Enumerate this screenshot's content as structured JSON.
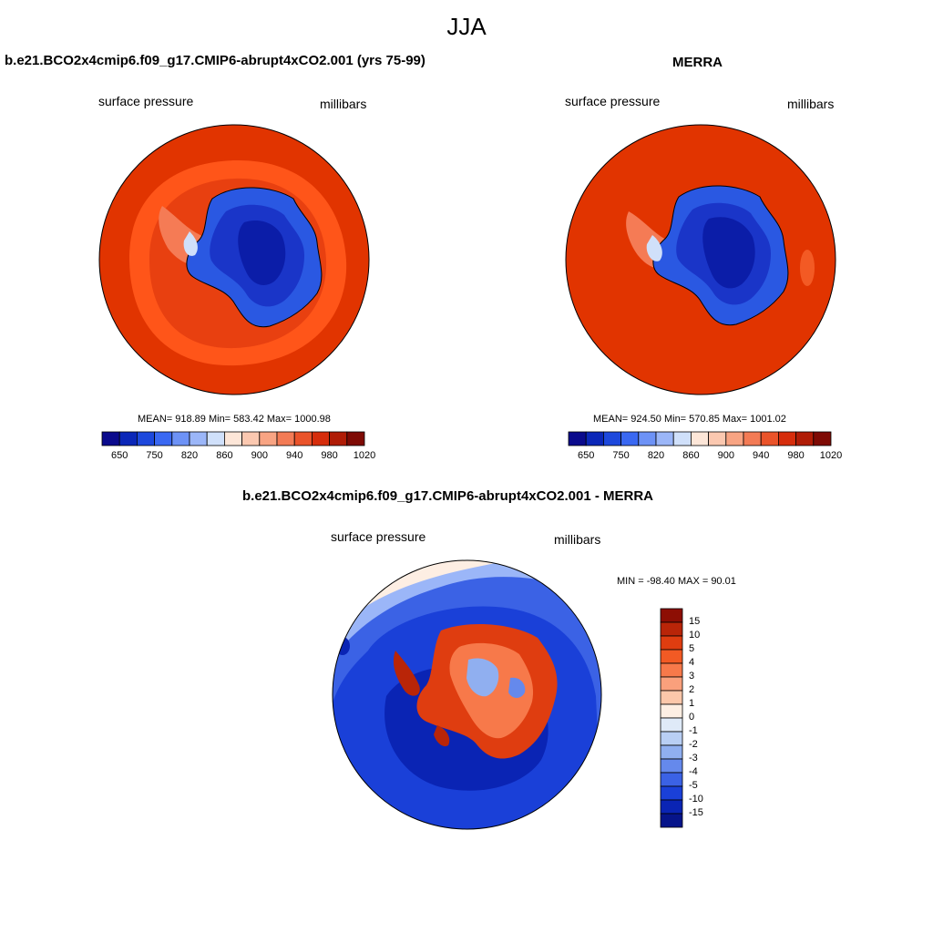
{
  "title": "JJA",
  "colors": {
    "ocean_red": "#e13400",
    "ocean_light": "#ff5519",
    "ice_dark": "#0b1da8",
    "ice_mid": "#1e4fd8",
    "coast": "#000000"
  },
  "panels": {
    "model": {
      "title": "b.e21.BCO2x4cmip6.f09_g17.CMIP6-abrupt4xCO2.001 (yrs 75-99)",
      "left_label": "surface pressure",
      "right_label": "millibars",
      "stats": "MEAN= 918.89  Min= 583.42  Max= 1000.98",
      "stats_values": {
        "mean": 918.89,
        "min": 583.42,
        "max": 1000.98
      }
    },
    "obs": {
      "title": "MERRA",
      "left_label": "surface pressure",
      "right_label": "millibars",
      "stats": "MEAN= 924.50  Min= 570.85  Max= 1001.02",
      "stats_values": {
        "mean": 924.5,
        "min": 570.85,
        "max": 1001.02
      }
    },
    "diff": {
      "title": "b.e21.BCO2x4cmip6.f09_g17.CMIP6-abrupt4xCO2.001 - MERRA",
      "left_label": "surface pressure",
      "right_label": "millibars",
      "stats": "MIN = -98.40 MAX =  90.01",
      "stats_values": {
        "min": -98.4,
        "max": 90.01
      }
    }
  },
  "colorbar_abs": {
    "colors": [
      "#0a0a8c",
      "#0b27b8",
      "#1d48dc",
      "#3a68f2",
      "#6d92f6",
      "#9bb6f8",
      "#d0e0fa",
      "#fde6d8",
      "#fbc8b0",
      "#f8a483",
      "#f37b55",
      "#ea532a",
      "#d62d0c",
      "#b01c06",
      "#7e0a04"
    ],
    "tick_labels": [
      "650",
      "750",
      "820",
      "860",
      "900",
      "940",
      "980",
      "1020"
    ]
  },
  "colorbar_diff": {
    "colors": [
      "#8d0e04",
      "#b92508",
      "#df3d10",
      "#f25a24",
      "#f7794a",
      "#faa07c",
      "#fcc7aa",
      "#fdeee3",
      "#dfeaf8",
      "#b9cff4",
      "#90aff0",
      "#6589ec",
      "#3b62e5",
      "#1a40d8",
      "#0a24b4",
      "#06148a"
    ],
    "tick_labels": [
      "15",
      "10",
      "5",
      "4",
      "3",
      "2",
      "1",
      "0",
      "-1",
      "-2",
      "-3",
      "-4",
      "-5",
      "-10",
      "-15"
    ]
  }
}
